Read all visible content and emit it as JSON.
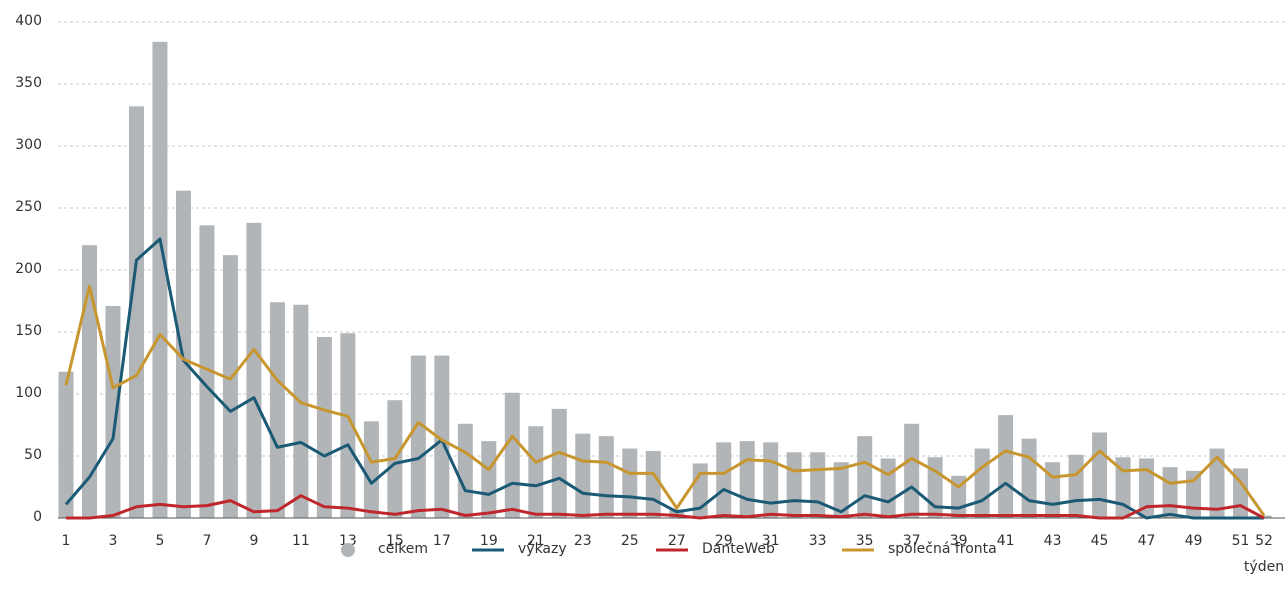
{
  "chart_data": {
    "type": "bar",
    "x_label": "týden",
    "categories": [
      "1",
      null,
      "3",
      null,
      "5",
      null,
      "7",
      null,
      "9",
      null,
      "11",
      null,
      "13",
      null,
      "15",
      null,
      "17",
      null,
      "19",
      null,
      "21",
      null,
      "23",
      null,
      "25",
      null,
      "27",
      null,
      "29",
      null,
      "31",
      null,
      "33",
      null,
      "35",
      null,
      "37",
      null,
      "39",
      null,
      "41",
      null,
      "43",
      null,
      "45",
      null,
      "47",
      null,
      "49",
      null,
      "51",
      "52"
    ],
    "series": [
      {
        "name": "celkem",
        "type": "bar",
        "color": "#b1b5b8",
        "values": [
          118,
          220,
          171,
          332,
          384,
          264,
          236,
          212,
          238,
          174,
          172,
          146,
          149,
          78,
          95,
          131,
          131,
          76,
          62,
          101,
          74,
          88,
          68,
          66,
          56,
          54,
          7,
          44,
          61,
          62,
          61,
          53,
          53,
          45,
          66,
          48,
          76,
          49,
          34,
          56,
          83,
          64,
          45,
          51,
          69,
          49,
          48,
          41,
          38,
          56,
          40,
          2
        ]
      },
      {
        "name": "výkazy",
        "type": "line",
        "color": "#1b5a75",
        "values": [
          11,
          33,
          64,
          208,
          225,
          127,
          106,
          86,
          97,
          57,
          61,
          50,
          59,
          28,
          44,
          48,
          63,
          22,
          19,
          28,
          26,
          32,
          20,
          18,
          17,
          15,
          5,
          8,
          23,
          15,
          12,
          14,
          13,
          5,
          18,
          13,
          25,
          9,
          8,
          14,
          28,
          14,
          11,
          14,
          15,
          11,
          0,
          3,
          0,
          0,
          0,
          0
        ]
      },
      {
        "name": "DanteWeb",
        "type": "line",
        "color": "#c0272d",
        "values": [
          0,
          0,
          2,
          9,
          11,
          9,
          10,
          14,
          5,
          6,
          18,
          9,
          8,
          5,
          3,
          6,
          7,
          2,
          4,
          7,
          3,
          3,
          2,
          3,
          3,
          3,
          2,
          0,
          2,
          1,
          3,
          2,
          2,
          1,
          3,
          1,
          3,
          3,
          2,
          2,
          2,
          2,
          2,
          2,
          0,
          0,
          9,
          10,
          8,
          7,
          10,
          0
        ]
      },
      {
        "name": "společná fronta",
        "type": "line",
        "color": "#c8962e",
        "values": [
          107,
          187,
          105,
          115,
          148,
          128,
          120,
          112,
          136,
          111,
          93,
          87,
          82,
          45,
          48,
          77,
          63,
          53,
          39,
          66,
          45,
          53,
          46,
          45,
          36,
          36,
          8,
          36,
          36,
          47,
          46,
          38,
          39,
          40,
          45,
          35,
          48,
          38,
          25,
          41,
          54,
          49,
          33,
          35,
          54,
          38,
          39,
          28,
          30,
          49,
          29,
          2
        ]
      }
    ],
    "ylim": [
      0,
      400
    ],
    "yticks": [
      0,
      50,
      100,
      150,
      200,
      250,
      300,
      350,
      400
    ],
    "grid": true,
    "legend": "bottom"
  }
}
